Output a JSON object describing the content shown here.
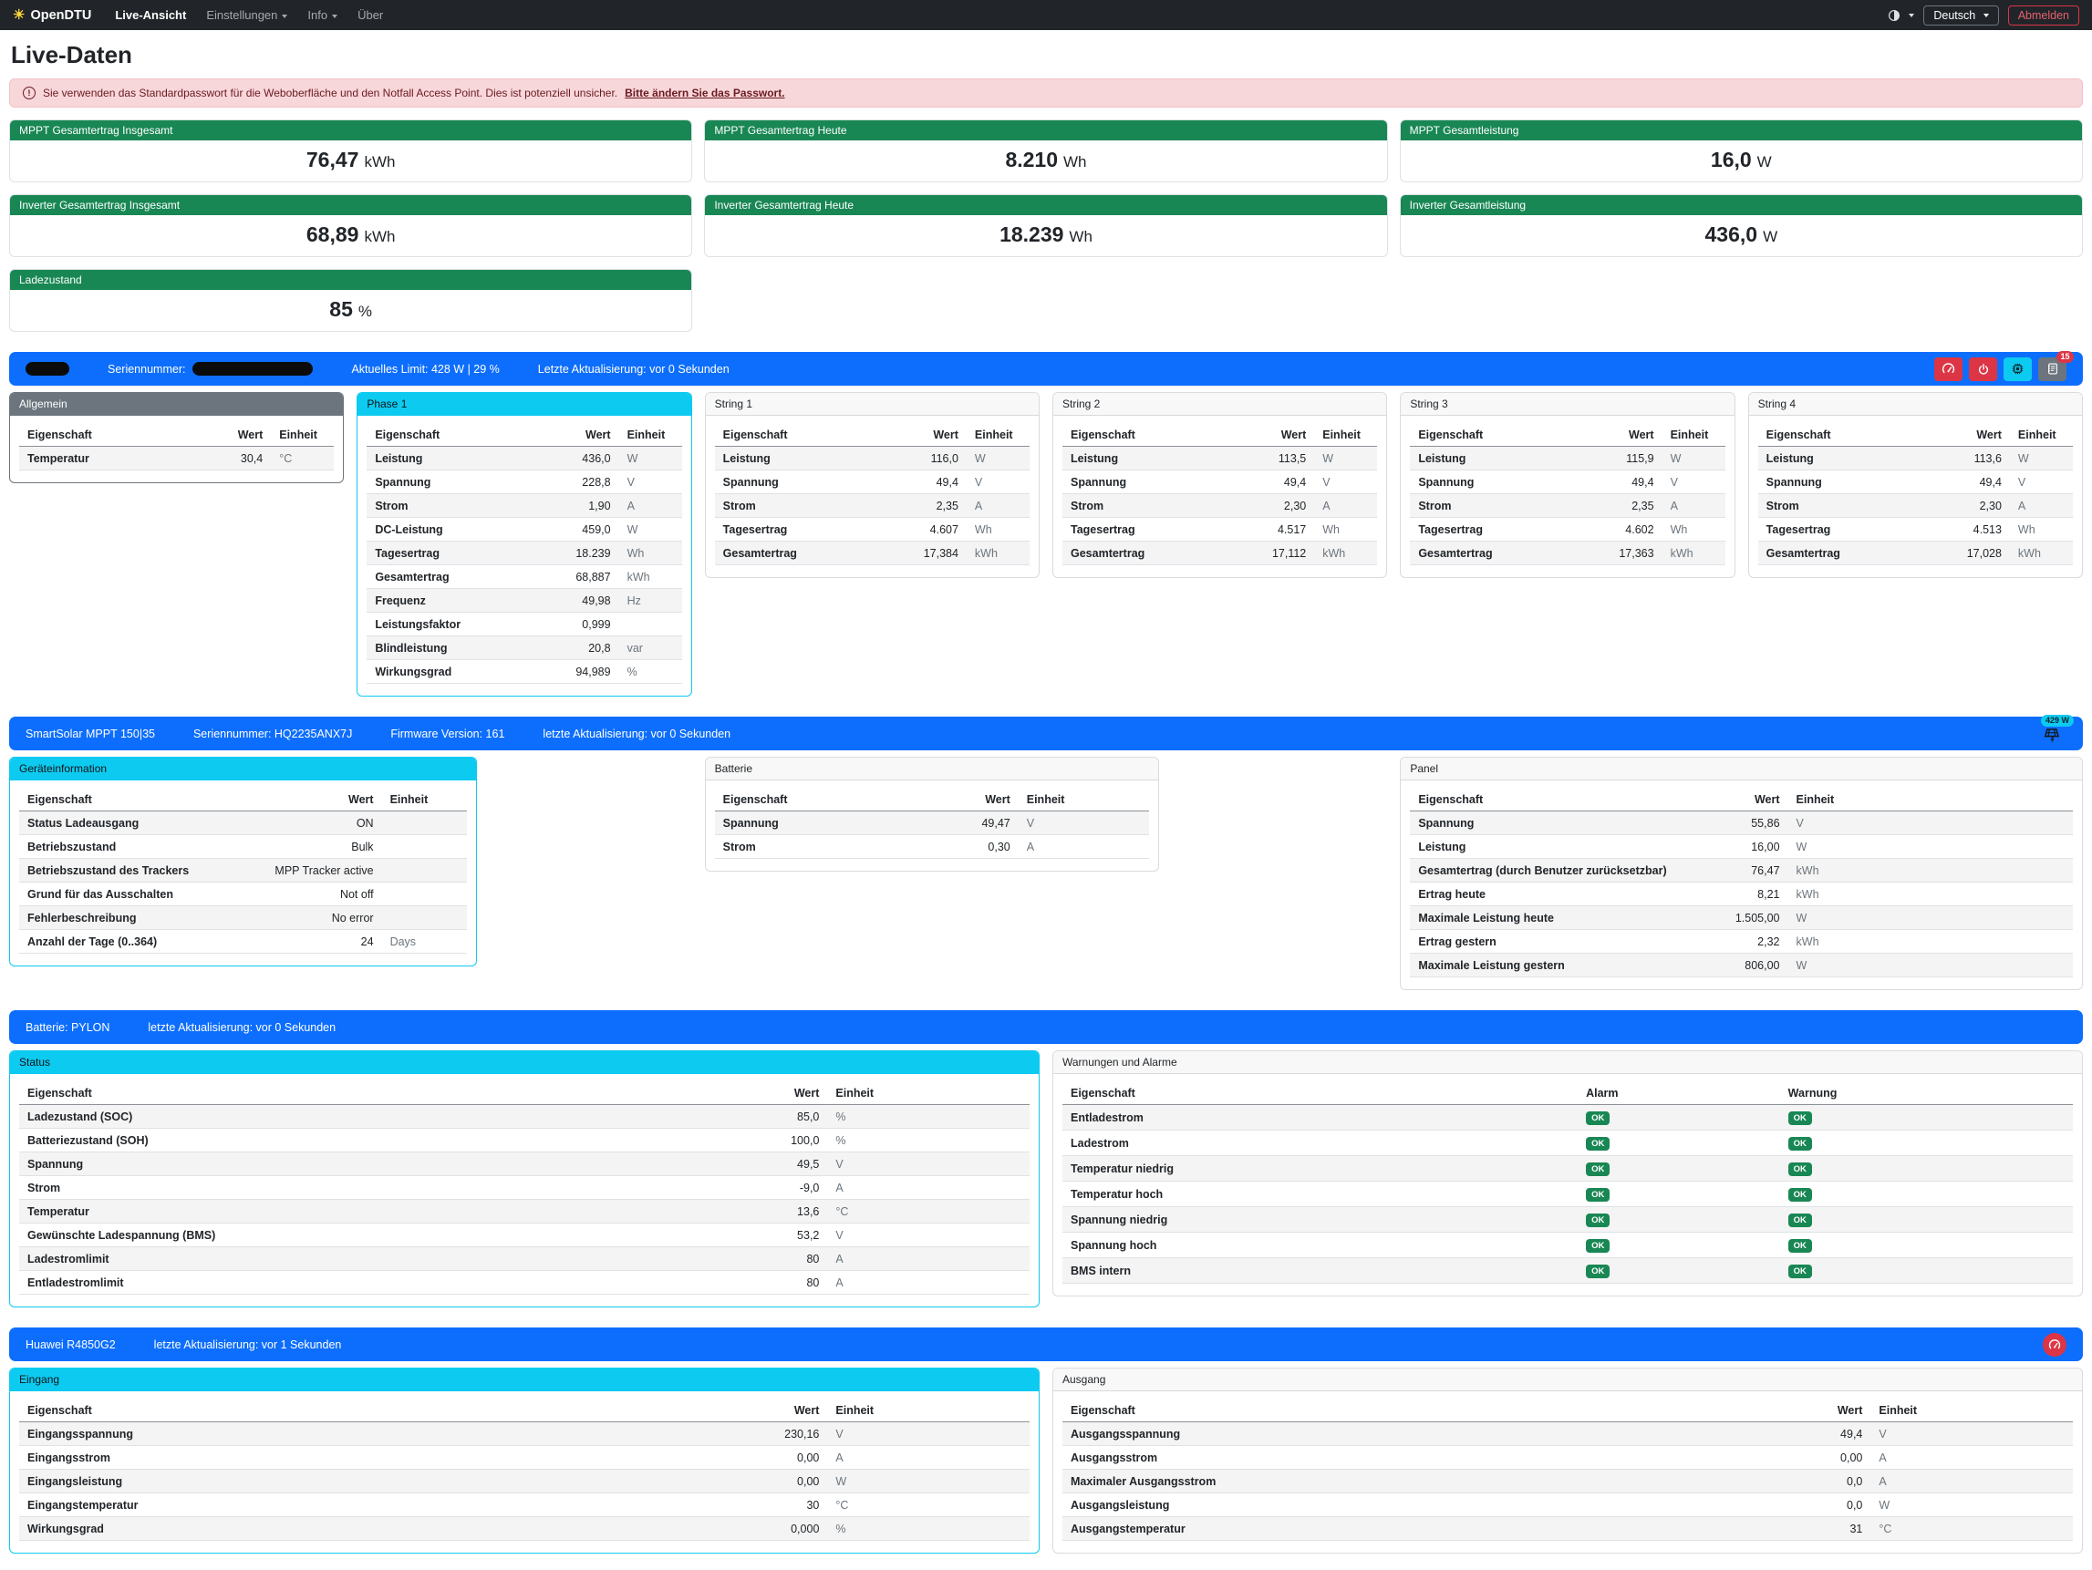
{
  "colors": {
    "primary": "#0d6efd",
    "success": "#198754",
    "info": "#0dcaf0",
    "danger": "#dc3545",
    "secondary": "#6c757d",
    "navbar_bg": "#212529",
    "alert_bg": "#f8d7da"
  },
  "navbar": {
    "brand": "OpenDTU",
    "brand_icon": "sun-icon",
    "items": [
      {
        "key": "live-ansicht",
        "label": "Live-Ansicht",
        "active": true,
        "caret": false
      },
      {
        "key": "einstellungen",
        "label": "Einstellungen",
        "active": false,
        "caret": true
      },
      {
        "key": "info",
        "label": "Info",
        "active": false,
        "caret": true
      },
      {
        "key": "ueber",
        "label": "Über",
        "active": false,
        "caret": false
      }
    ],
    "theme_icon": "circle-half-icon",
    "language_button": "Deutsch",
    "logout_button": "Abmelden"
  },
  "page": {
    "title": "Live-Daten"
  },
  "alert": {
    "icon": "exclamation-circle-icon",
    "text": "Sie verwenden das Standardpasswort für die Weboberfläche und den Notfall Access Point. Dies ist potenziell unsicher.",
    "link_text": "Bitte ändern Sie das Passwort."
  },
  "stat_cards": [
    {
      "title": "MPPT Gesamtertrag Insgesamt",
      "value": "76,47",
      "unit": "kWh"
    },
    {
      "title": "MPPT Gesamtertrag Heute",
      "value": "8.210",
      "unit": "Wh"
    },
    {
      "title": "MPPT Gesamtleistung",
      "value": "16,0",
      "unit": "W"
    },
    {
      "title": "Inverter Gesamtertrag Insgesamt",
      "value": "68,89",
      "unit": "kWh"
    },
    {
      "title": "Inverter Gesamtertrag Heute",
      "value": "18.239",
      "unit": "Wh"
    },
    {
      "title": "Inverter Gesamtleistung",
      "value": "436,0",
      "unit": "W"
    },
    {
      "title": "Ladezustand",
      "value": "85",
      "unit": "%"
    }
  ],
  "table_headers": {
    "property": "Eigenschaft",
    "value": "Wert",
    "unit": "Einheit",
    "alarm": "Alarm",
    "warning": "Warnung"
  },
  "inverter": {
    "bar": {
      "serial_label": "Seriennummer:",
      "limit_text": "Aktuelles Limit: 428 W | 29 %",
      "updated_text": "Letzte Aktualisierung: vor 0 Sekunden",
      "events_badge": "15",
      "buttons": [
        {
          "name": "limit-settings-button",
          "icon": "gauge-icon"
        },
        {
          "name": "power-button",
          "icon": "power-icon"
        },
        {
          "name": "device-info-button",
          "icon": "chip-icon"
        },
        {
          "name": "event-log-button",
          "icon": "journal-icon",
          "badge": "15"
        }
      ]
    },
    "cards": {
      "allgemein": {
        "title": "Allgemein",
        "rows": [
          {
            "label": "Temperatur",
            "value": "30,4",
            "unit": "°C"
          }
        ]
      },
      "phase1": {
        "title": "Phase 1",
        "rows": [
          {
            "label": "Leistung",
            "value": "436,0",
            "unit": "W"
          },
          {
            "label": "Spannung",
            "value": "228,8",
            "unit": "V"
          },
          {
            "label": "Strom",
            "value": "1,90",
            "unit": "A"
          },
          {
            "label": "DC-Leistung",
            "value": "459,0",
            "unit": "W"
          },
          {
            "label": "Tagesertrag",
            "value": "18.239",
            "unit": "Wh"
          },
          {
            "label": "Gesamtertrag",
            "value": "68,887",
            "unit": "kWh"
          },
          {
            "label": "Frequenz",
            "value": "49,98",
            "unit": "Hz"
          },
          {
            "label": "Leistungsfaktor",
            "value": "0,999",
            "unit": ""
          },
          {
            "label": "Blindleistung",
            "value": "20,8",
            "unit": "var"
          },
          {
            "label": "Wirkungsgrad",
            "value": "94,989",
            "unit": "%"
          }
        ]
      },
      "string1": {
        "title": "String 1",
        "rows": [
          {
            "label": "Leistung",
            "value": "116,0",
            "unit": "W"
          },
          {
            "label": "Spannung",
            "value": "49,4",
            "unit": "V"
          },
          {
            "label": "Strom",
            "value": "2,35",
            "unit": "A"
          },
          {
            "label": "Tagesertrag",
            "value": "4.607",
            "unit": "Wh"
          },
          {
            "label": "Gesamtertrag",
            "value": "17,384",
            "unit": "kWh"
          }
        ]
      },
      "string2": {
        "title": "String 2",
        "rows": [
          {
            "label": "Leistung",
            "value": "113,5",
            "unit": "W"
          },
          {
            "label": "Spannung",
            "value": "49,4",
            "unit": "V"
          },
          {
            "label": "Strom",
            "value": "2,30",
            "unit": "A"
          },
          {
            "label": "Tagesertrag",
            "value": "4.517",
            "unit": "Wh"
          },
          {
            "label": "Gesamtertrag",
            "value": "17,112",
            "unit": "kWh"
          }
        ]
      },
      "string3": {
        "title": "String 3",
        "rows": [
          {
            "label": "Leistung",
            "value": "115,9",
            "unit": "W"
          },
          {
            "label": "Spannung",
            "value": "49,4",
            "unit": "V"
          },
          {
            "label": "Strom",
            "value": "2,35",
            "unit": "A"
          },
          {
            "label": "Tagesertrag",
            "value": "4.602",
            "unit": "Wh"
          },
          {
            "label": "Gesamtertrag",
            "value": "17,363",
            "unit": "kWh"
          }
        ]
      },
      "string4": {
        "title": "String 4",
        "rows": [
          {
            "label": "Leistung",
            "value": "113,6",
            "unit": "W"
          },
          {
            "label": "Spannung",
            "value": "49,4",
            "unit": "V"
          },
          {
            "label": "Strom",
            "value": "2,30",
            "unit": "A"
          },
          {
            "label": "Tagesertrag",
            "value": "4.513",
            "unit": "Wh"
          },
          {
            "label": "Gesamtertrag",
            "value": "17,028",
            "unit": "kWh"
          }
        ]
      }
    }
  },
  "victron": {
    "bar": {
      "model": "SmartSolar MPPT 150|35",
      "serial_text": "Seriennummer: HQ2235ANX7J",
      "firmware_text": "Firmware Version: 161",
      "updated_text": "letzte Aktualisierung: vor 0 Sekunden",
      "power_badge": "429 W",
      "power_icon": "solar-panel-icon"
    },
    "cards": {
      "device": {
        "title": "Geräteinformation",
        "rows": [
          {
            "label": "Status Ladeausgang",
            "value": "ON",
            "unit": ""
          },
          {
            "label": "Betriebszustand",
            "value": "Bulk",
            "unit": ""
          },
          {
            "label": "Betriebszustand des Trackers",
            "value": "MPP Tracker active",
            "unit": ""
          },
          {
            "label": "Grund für das Ausschalten",
            "value": "Not off",
            "unit": ""
          },
          {
            "label": "Fehlerbeschreibung",
            "value": "No error",
            "unit": ""
          },
          {
            "label": "Anzahl der Tage (0..364)",
            "value": "24",
            "unit": "Days"
          }
        ]
      },
      "battery": {
        "title": "Batterie",
        "rows": [
          {
            "label": "Spannung",
            "value": "49,47",
            "unit": "V"
          },
          {
            "label": "Strom",
            "value": "0,30",
            "unit": "A"
          }
        ]
      },
      "panel": {
        "title": "Panel",
        "rows": [
          {
            "label": "Spannung",
            "value": "55,86",
            "unit": "V"
          },
          {
            "label": "Leistung",
            "value": "16,00",
            "unit": "W"
          },
          {
            "label": "Gesamtertrag (durch Benutzer zurücksetzbar)",
            "value": "76,47",
            "unit": "kWh"
          },
          {
            "label": "Ertrag heute",
            "value": "8,21",
            "unit": "kWh"
          },
          {
            "label": "Maximale Leistung heute",
            "value": "1.505,00",
            "unit": "W"
          },
          {
            "label": "Ertrag gestern",
            "value": "2,32",
            "unit": "kWh"
          },
          {
            "label": "Maximale Leistung gestern",
            "value": "806,00",
            "unit": "W"
          }
        ]
      }
    }
  },
  "pylon": {
    "bar": {
      "title": "Batterie: PYLON",
      "updated_text": "letzte Aktualisierung: vor 0 Sekunden"
    },
    "cards": {
      "status": {
        "title": "Status",
        "rows": [
          {
            "label": "Ladezustand (SOC)",
            "value": "85,0",
            "unit": "%"
          },
          {
            "label": "Batteriezustand (SOH)",
            "value": "100,0",
            "unit": "%"
          },
          {
            "label": "Spannung",
            "value": "49,5",
            "unit": "V"
          },
          {
            "label": "Strom",
            "value": "-9,0",
            "unit": "A"
          },
          {
            "label": "Temperatur",
            "value": "13,6",
            "unit": "°C"
          },
          {
            "label": "Gewünschte Ladespannung (BMS)",
            "value": "53,2",
            "unit": "V"
          },
          {
            "label": "Ladestromlimit",
            "value": "80",
            "unit": "A"
          },
          {
            "label": "Entladestromlimit",
            "value": "80",
            "unit": "A"
          }
        ]
      },
      "alarms": {
        "title": "Warnungen und Alarme",
        "rows": [
          {
            "label": "Entladestrom",
            "alarm": "OK",
            "warning": "OK"
          },
          {
            "label": "Ladestrom",
            "alarm": "OK",
            "warning": "OK"
          },
          {
            "label": "Temperatur niedrig",
            "alarm": "OK",
            "warning": "OK"
          },
          {
            "label": "Temperatur hoch",
            "alarm": "OK",
            "warning": "OK"
          },
          {
            "label": "Spannung niedrig",
            "alarm": "OK",
            "warning": "OK"
          },
          {
            "label": "Spannung hoch",
            "alarm": "OK",
            "warning": "OK"
          },
          {
            "label": "BMS intern",
            "alarm": "OK",
            "warning": "OK"
          }
        ]
      }
    }
  },
  "huawei": {
    "bar": {
      "title": "Huawei R4850G2",
      "updated_text": "letzte Aktualisierung: vor 1 Sekunden",
      "button_icon": "gauge-icon"
    },
    "cards": {
      "input": {
        "title": "Eingang",
        "rows": [
          {
            "label": "Eingangsspannung",
            "value": "230,16",
            "unit": "V"
          },
          {
            "label": "Eingangsstrom",
            "value": "0,00",
            "unit": "A"
          },
          {
            "label": "Eingangsleistung",
            "value": "0,00",
            "unit": "W"
          },
          {
            "label": "Eingangstemperatur",
            "value": "30",
            "unit": "°C"
          },
          {
            "label": "Wirkungsgrad",
            "value": "0,000",
            "unit": "%"
          }
        ]
      },
      "output": {
        "title": "Ausgang",
        "rows": [
          {
            "label": "Ausgangsspannung",
            "value": "49,4",
            "unit": "V"
          },
          {
            "label": "Ausgangsstrom",
            "value": "0,00",
            "unit": "A"
          },
          {
            "label": "Maximaler Ausgangsstrom",
            "value": "0,0",
            "unit": "A"
          },
          {
            "label": "Ausgangsleistung",
            "value": "0,0",
            "unit": "W"
          },
          {
            "label": "Ausgangstemperatur",
            "value": "31",
            "unit": "°C"
          }
        ]
      }
    }
  }
}
